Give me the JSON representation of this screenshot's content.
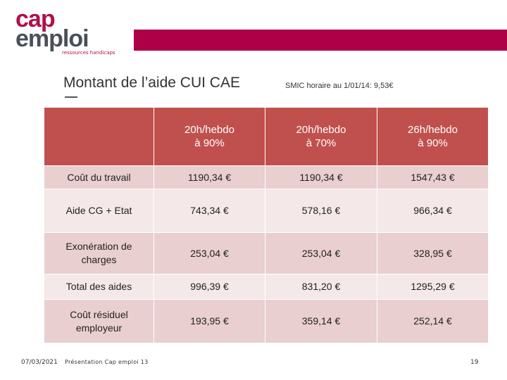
{
  "logo": {
    "line1": "cap",
    "line2": "emploi",
    "tagline": "ressources handicaps"
  },
  "title": "Montant de l’aide CUI CAE",
  "smic_note": "SMIC horaire au 1/01/14: 9,53€",
  "table": {
    "header": [
      "",
      "20h/hebdo\nà 90%",
      "20h/hebdo\nà 70%",
      "26h/hebdo\nà 90%"
    ],
    "rows": [
      [
        "Coût du travail",
        "1190,34 €",
        "1190,34 €",
        "1547,43 €"
      ],
      [
        "Aide CG + Etat",
        "743,34 €",
        "578,16 €",
        "966,34 €"
      ],
      [
        "Exonération de charges",
        "253,04 €",
        "253,04 €",
        "328,95 €"
      ],
      [
        "Total des aides",
        "996,39 €",
        "831,20 €",
        "1295,29 €"
      ],
      [
        "Coût résiduel employeur",
        "193,95 €",
        "359,14 €",
        "252,14 €"
      ]
    ]
  },
  "footer": {
    "date": "07/03/2021",
    "text": "Présentation Cap emploi 13",
    "page": "19"
  },
  "colors": {
    "brand": "#ad0047",
    "header": "#c0504d",
    "row_dark": "#e9cfcf",
    "row_light": "#f4e8e8"
  }
}
